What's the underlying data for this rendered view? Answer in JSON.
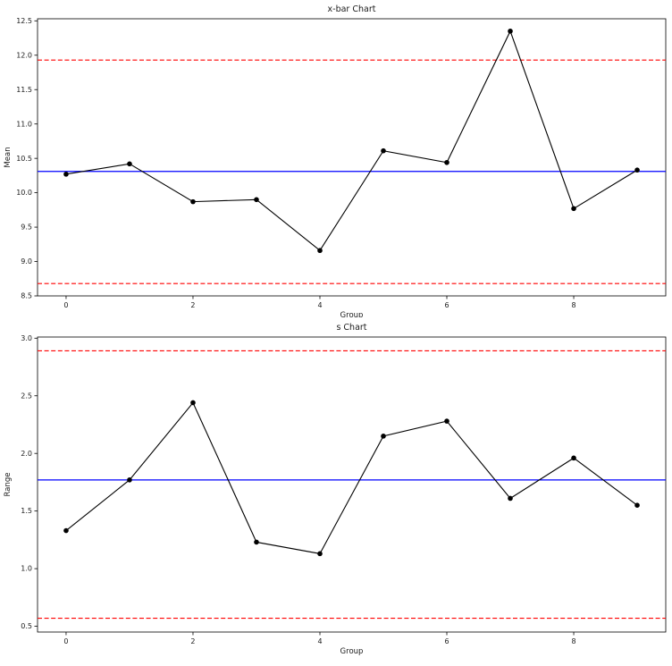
{
  "figure": {
    "background": "#ffffff"
  },
  "chart_data": [
    {
      "type": "line",
      "title": "x-bar Chart",
      "xlabel": "Group",
      "ylabel": "Mean",
      "x": [
        0,
        1,
        2,
        3,
        4,
        5,
        6,
        7,
        8,
        9
      ],
      "values": [
        10.27,
        10.42,
        9.87,
        9.9,
        9.16,
        10.61,
        10.44,
        12.35,
        9.77,
        10.33
      ],
      "center_line": 10.31,
      "ucl": 11.93,
      "lcl": 8.68,
      "ylim": [
        8.5,
        12.53
      ],
      "xlim": [
        -0.45,
        9.45
      ],
      "yticks": [
        8.5,
        9.0,
        9.5,
        10.0,
        10.5,
        11.0,
        11.5,
        12.0,
        12.5
      ],
      "ytick_labels": [
        "8.5",
        "9.0",
        "9.5",
        "10.0",
        "10.5",
        "11.0",
        "11.5",
        "12.0",
        "12.5"
      ],
      "xticks": [
        0,
        2,
        4,
        6,
        8
      ],
      "xtick_labels": [
        "0",
        "2",
        "4",
        "6",
        "8"
      ],
      "grid": false,
      "legend": "none",
      "line_color": "#000000",
      "marker": "circle",
      "center_color": "#0000ff",
      "limit_color": "#ff0000",
      "limit_style": "dashed"
    },
    {
      "type": "line",
      "title": "s Chart",
      "xlabel": "Group",
      "ylabel": "Range",
      "x": [
        0,
        1,
        2,
        3,
        4,
        5,
        6,
        7,
        8,
        9
      ],
      "values": [
        1.33,
        1.77,
        2.44,
        1.23,
        1.13,
        2.15,
        2.28,
        1.61,
        1.96,
        1.55
      ],
      "center_line": 1.77,
      "ucl": 2.89,
      "lcl": 0.57,
      "ylim": [
        0.45,
        3.01
      ],
      "xlim": [
        -0.45,
        9.45
      ],
      "yticks": [
        0.5,
        1.0,
        1.5,
        2.0,
        2.5,
        3.0
      ],
      "ytick_labels": [
        "0.5",
        "1.0",
        "1.5",
        "2.0",
        "2.5",
        "3.0"
      ],
      "xticks": [
        0,
        2,
        4,
        6,
        8
      ],
      "xtick_labels": [
        "0",
        "2",
        "4",
        "6",
        "8"
      ],
      "grid": false,
      "legend": "none",
      "line_color": "#000000",
      "marker": "circle",
      "center_color": "#0000ff",
      "limit_color": "#ff0000",
      "limit_style": "dashed"
    }
  ]
}
